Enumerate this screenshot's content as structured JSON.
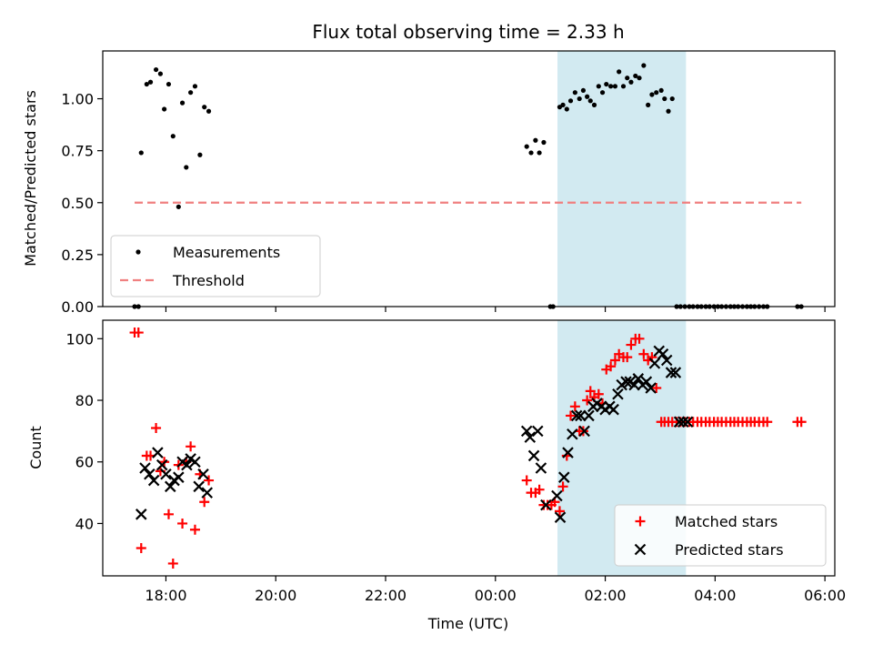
{
  "chart_data": [
    {
      "type": "scatter",
      "title": "Flux total observing time = 2.33 h",
      "xlabel": "",
      "ylabel": "Matched/Predicted stars",
      "xlim": [
        16.85,
        30.18
      ],
      "ylim": [
        0.0,
        1.23
      ],
      "yticks": [
        0.0,
        0.25,
        0.5,
        0.75,
        1.0
      ],
      "ytick_labels": [
        "0.00",
        "0.25",
        "0.50",
        "0.75",
        "1.00"
      ],
      "xticks": [
        18,
        20,
        22,
        24,
        26,
        28,
        30
      ],
      "xtick_labels": [],
      "highlight_span": [
        25.13,
        27.47
      ],
      "highlight_color": "#add8e6",
      "legend": {
        "position": "lower-left",
        "entries": [
          "Measurements",
          "Threshold"
        ]
      },
      "series": [
        {
          "name": "Measurements",
          "color": "#000000",
          "marker": "dot",
          "x": [
            17.43,
            17.5,
            17.55,
            17.65,
            17.72,
            17.82,
            17.9,
            17.97,
            18.05,
            18.13,
            18.23,
            18.3,
            18.37,
            18.45,
            18.53,
            18.62,
            18.7,
            18.78,
            24.57,
            24.65,
            24.73,
            24.8,
            24.88,
            25.0,
            25.05,
            25.17,
            25.23,
            25.3,
            25.37,
            25.45,
            25.53,
            25.6,
            25.67,
            25.73,
            25.8,
            25.88,
            25.95,
            26.02,
            26.1,
            26.18,
            26.25,
            26.33,
            26.4,
            26.47,
            26.55,
            26.62,
            26.7,
            26.78,
            26.85,
            26.93,
            27.02,
            27.08,
            27.15,
            27.22,
            27.3,
            27.37,
            27.45,
            27.53,
            27.6,
            27.68,
            27.75,
            27.83,
            27.9,
            27.98,
            28.05,
            28.12,
            28.2,
            28.28,
            28.35,
            28.42,
            28.5,
            28.58,
            28.65,
            28.72,
            28.8,
            28.88,
            28.95,
            29.5,
            29.57
          ],
          "y": [
            0.0,
            0.0,
            0.74,
            1.07,
            1.08,
            1.14,
            1.12,
            0.95,
            1.07,
            0.82,
            0.48,
            0.98,
            0.67,
            1.03,
            1.06,
            0.73,
            0.96,
            0.94,
            0.77,
            0.74,
            0.8,
            0.74,
            0.79,
            0.0,
            0.0,
            0.96,
            0.97,
            0.95,
            0.99,
            1.03,
            1.0,
            1.04,
            1.01,
            0.99,
            0.97,
            1.06,
            1.03,
            1.07,
            1.06,
            1.06,
            1.13,
            1.06,
            1.1,
            1.08,
            1.11,
            1.1,
            1.16,
            0.97,
            1.02,
            1.03,
            1.04,
            1.0,
            0.94,
            1.0,
            0.0,
            0.0,
            0.0,
            0.0,
            0.0,
            0.0,
            0.0,
            0.0,
            0.0,
            0.0,
            0.0,
            0.0,
            0.0,
            0.0,
            0.0,
            0.0,
            0.0,
            0.0,
            0.0,
            0.0,
            0.0,
            0.0,
            0.0,
            0.0,
            0.0
          ]
        },
        {
          "name": "Threshold",
          "color": "#f08080",
          "style": "dashed",
          "x": [
            17.43,
            29.57
          ],
          "y": [
            0.5,
            0.5
          ]
        }
      ]
    },
    {
      "type": "scatter",
      "title": "",
      "xlabel": "Time (UTC)",
      "ylabel": "Count",
      "xlim": [
        16.85,
        30.18
      ],
      "ylim": [
        23,
        106
      ],
      "yticks": [
        40,
        60,
        80,
        100
      ],
      "ytick_labels": [
        "40",
        "60",
        "80",
        "100"
      ],
      "xticks": [
        18,
        20,
        22,
        24,
        26,
        28,
        30
      ],
      "xtick_labels": [
        "18:00",
        "20:00",
        "22:00",
        "00:00",
        "02:00",
        "04:00",
        "06:00"
      ],
      "highlight_span": [
        25.13,
        27.47
      ],
      "highlight_color": "#add8e6",
      "legend": {
        "position": "lower-right",
        "entries": [
          "Matched stars",
          "Predicted stars"
        ]
      },
      "series": [
        {
          "name": "Matched stars",
          "color": "#ff0000",
          "marker": "plus",
          "x": [
            17.43,
            17.5,
            17.55,
            17.65,
            17.72,
            17.82,
            17.9,
            17.97,
            18.05,
            18.13,
            18.23,
            18.3,
            18.37,
            18.45,
            18.53,
            18.62,
            18.7,
            18.78,
            24.57,
            24.65,
            24.73,
            24.8,
            24.88,
            24.95,
            25.02,
            25.08,
            25.17,
            25.23,
            25.3,
            25.37,
            25.45,
            25.53,
            25.6,
            25.67,
            25.73,
            25.8,
            25.88,
            25.95,
            26.02,
            26.1,
            26.18,
            26.25,
            26.33,
            26.4,
            26.47,
            26.55,
            26.62,
            26.7,
            26.78,
            26.85,
            26.93,
            27.02,
            27.08,
            27.15,
            27.22,
            27.3,
            27.37,
            27.45,
            27.53,
            27.6,
            27.68,
            27.75,
            27.83,
            27.9,
            27.98,
            28.05,
            28.12,
            28.2,
            28.28,
            28.35,
            28.42,
            28.5,
            28.58,
            28.65,
            28.72,
            28.8,
            28.88,
            28.95,
            29.5,
            29.57
          ],
          "y": [
            102,
            102,
            32,
            62,
            62,
            71,
            57,
            60,
            43,
            27,
            59,
            40,
            60,
            65,
            38,
            56,
            47,
            54,
            54,
            50,
            50,
            51,
            46,
            46,
            46,
            47,
            44,
            52,
            62,
            75,
            78,
            70,
            70,
            80,
            83,
            81,
            82,
            79,
            90,
            91,
            93,
            95,
            94,
            94,
            98,
            100,
            100,
            95,
            93,
            94,
            84,
            73,
            73,
            73,
            73,
            73,
            73,
            73,
            73,
            73,
            73,
            73,
            73,
            73,
            73,
            73,
            73,
            73,
            73,
            73,
            73,
            73,
            73,
            73,
            73,
            73,
            73,
            73,
            73,
            73
          ]
        },
        {
          "name": "Predicted stars",
          "color": "#000000",
          "marker": "x",
          "x": [
            17.55,
            17.62,
            17.7,
            17.78,
            17.85,
            17.93,
            18.0,
            18.08,
            18.15,
            18.23,
            18.3,
            18.38,
            18.45,
            18.53,
            18.6,
            18.68,
            18.75,
            24.57,
            24.63,
            24.7,
            24.77,
            24.83,
            24.92,
            25.12,
            25.18,
            25.25,
            25.32,
            25.4,
            25.48,
            25.55,
            25.62,
            25.7,
            25.78,
            25.85,
            25.93,
            26.0,
            26.08,
            26.15,
            26.23,
            26.3,
            26.38,
            26.45,
            26.53,
            26.6,
            26.68,
            26.75,
            26.83,
            26.9,
            26.98,
            27.05,
            27.12,
            27.2,
            27.28,
            27.35,
            27.42,
            27.5
          ],
          "y": [
            43,
            58,
            56,
            54,
            63,
            59,
            56,
            52,
            54,
            55,
            60,
            59,
            61,
            60,
            52,
            56,
            50,
            70,
            68,
            62,
            70,
            58,
            46,
            49,
            42,
            55,
            63,
            69,
            75,
            75,
            70,
            75,
            78,
            79,
            78,
            77,
            78,
            77,
            82,
            85,
            86,
            86,
            85,
            87,
            85,
            86,
            84,
            92,
            96,
            95,
            93,
            89,
            89,
            73,
            73,
            73
          ]
        }
      ]
    }
  ]
}
